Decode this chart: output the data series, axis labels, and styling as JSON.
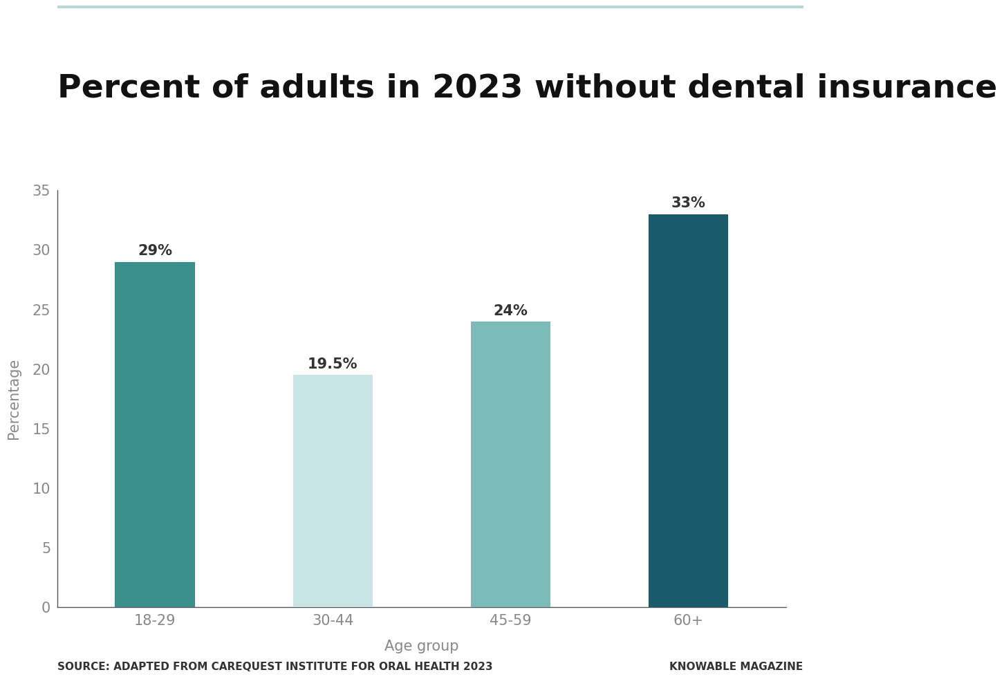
{
  "title": "Percent of adults in 2023 without dental insurance",
  "categories": [
    "18-29",
    "30-44",
    "45-59",
    "60+"
  ],
  "values": [
    29,
    19.5,
    24,
    33
  ],
  "labels": [
    "29%",
    "19.5%",
    "24%",
    "33%"
  ],
  "bar_colors": [
    "#3a8e8c",
    "#c8e4e4",
    "#7bbcb8",
    "#1a5b6b"
  ],
  "xlabel": "Age group",
  "ylabel": "Percentage",
  "ylim": [
    0,
    35
  ],
  "yticks": [
    0,
    5,
    10,
    15,
    20,
    25,
    30,
    35
  ],
  "source_text": "SOURCE: ADAPTED FROM CAREQUEST INSTITUTE FOR ORAL HEALTH 2023",
  "credit_text": "KNOWABLE MAGAZINE",
  "title_fontsize": 34,
  "axis_label_fontsize": 15,
  "tick_fontsize": 15,
  "bar_label_fontsize": 15,
  "source_fontsize": 11,
  "top_line_color": "#b8d8d8",
  "background_color": "#ffffff",
  "axis_color": "#555555",
  "tick_color": "#888888",
  "bar_width": 0.45
}
